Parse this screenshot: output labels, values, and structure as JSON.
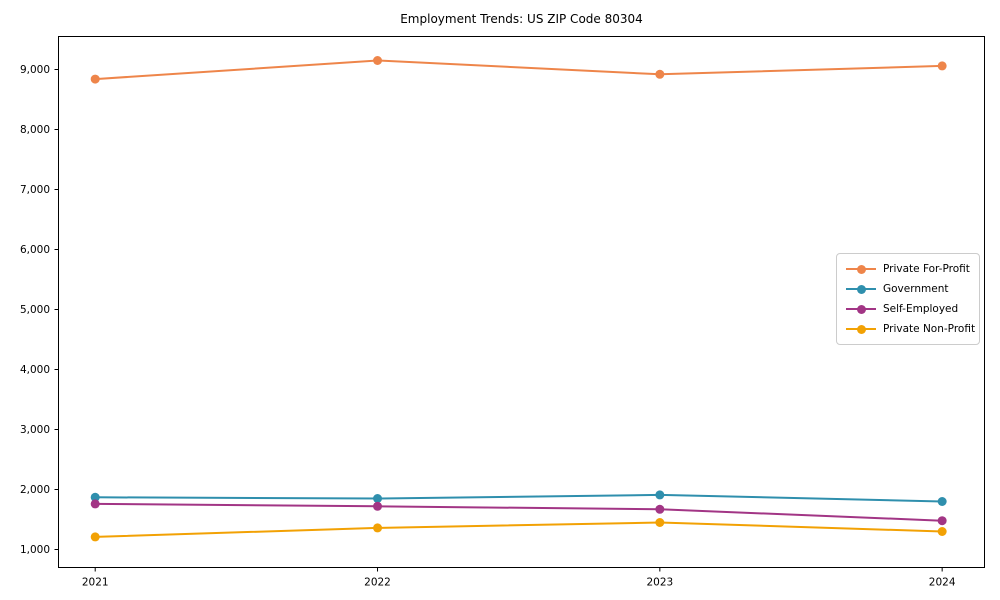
{
  "page": {
    "title": "Employment Trends: US ZIP Code 80304"
  },
  "chart_data": {
    "type": "line",
    "title": "Employment Trends: US ZIP Code 80304",
    "xlabel": "",
    "ylabel": "",
    "x": [
      2021,
      2022,
      2023,
      2024
    ],
    "xtick_labels": [
      "2021",
      "2022",
      "2023",
      "2024"
    ],
    "yticks": [
      1000,
      2000,
      3000,
      4000,
      5000,
      6000,
      7000,
      8000,
      9000
    ],
    "ytick_labels": [
      "1,000",
      "2,000",
      "3,000",
      "4,000",
      "5,000",
      "6,000",
      "7,000",
      "8,000",
      "9,000"
    ],
    "xlim": [
      2020.87,
      2024.15
    ],
    "ylim": [
      700,
      9550
    ],
    "grid": false,
    "legend_position": "center right",
    "series": [
      {
        "name": "Private For-Profit",
        "color": "#ee854a",
        "values": [
          8840,
          9150,
          8920,
          9060
        ]
      },
      {
        "name": "Government",
        "color": "#2f8fad",
        "values": [
          1870,
          1850,
          1910,
          1800
        ]
      },
      {
        "name": "Self-Employed",
        "color": "#a23585",
        "values": [
          1760,
          1720,
          1670,
          1480
        ]
      },
      {
        "name": "Private Non-Profit",
        "color": "#f2a104",
        "values": [
          1210,
          1360,
          1450,
          1300
        ]
      }
    ]
  }
}
